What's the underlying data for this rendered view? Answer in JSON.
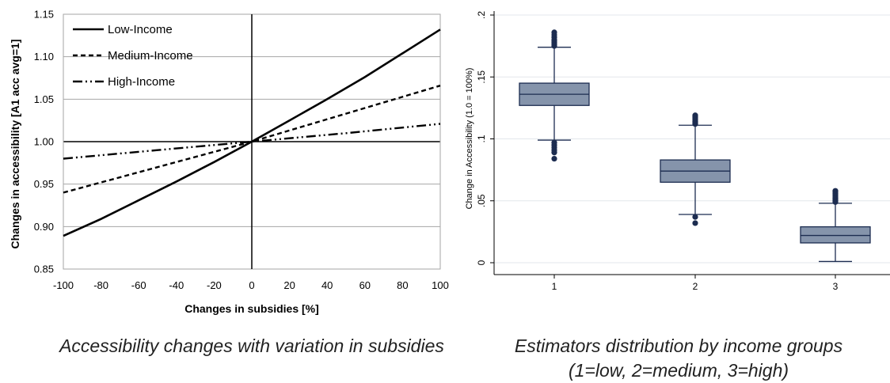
{
  "chart_data": [
    {
      "type": "line",
      "xlabel": "Changes in subsidies [%]",
      "ylabel": "Changes in accessibility [A1 acc avg=1]",
      "xlim": [
        -100,
        100
      ],
      "ylim": [
        0.85,
        1.15
      ],
      "xticks": [
        "-100",
        "-80",
        "-60",
        "-40",
        "-20",
        "0",
        "20",
        "40",
        "60",
        "80",
        "100"
      ],
      "yticks": [
        "0.85",
        "0.90",
        "0.95",
        "1.00",
        "1.05",
        "1.10",
        "1.15"
      ],
      "grid": "horizontal",
      "legend_position": "top-left",
      "series": [
        {
          "name": "Low-Income",
          "style": "solid",
          "points": [
            [
              -100,
              0.889
            ],
            [
              -80,
              0.909
            ],
            [
              -60,
              0.931
            ],
            [
              -40,
              0.953
            ],
            [
              -20,
              0.976
            ],
            [
              0,
              1.0
            ],
            [
              20,
              1.025
            ],
            [
              40,
              1.05
            ],
            [
              60,
              1.076
            ],
            [
              80,
              1.104
            ],
            [
              100,
              1.132
            ]
          ]
        },
        {
          "name": "Medium-Income",
          "style": "dashed",
          "points": [
            [
              -100,
              0.94
            ],
            [
              -50,
              0.97
            ],
            [
              0,
              1.0
            ],
            [
              50,
              1.033
            ],
            [
              100,
              1.066
            ]
          ]
        },
        {
          "name": "High-Income",
          "style": "dash-dot-dot",
          "points": [
            [
              -100,
              0.98
            ],
            [
              -50,
              0.99
            ],
            [
              0,
              1.0
            ],
            [
              50,
              1.01
            ],
            [
              100,
              1.021
            ]
          ]
        }
      ],
      "caption": "Accessibility changes with variation in subsidies"
    },
    {
      "type": "box",
      "xlabel": "",
      "ylabel": "Change in Accessibility (1.0 = 100%)",
      "ylim": [
        0,
        0.2
      ],
      "yticks": [
        ".2",
        ".15",
        ".1",
        ".05",
        "0"
      ],
      "grid": "horizontal",
      "box_color": "#8594ab",
      "categories": [
        "1",
        "2",
        "3"
      ],
      "boxes": [
        {
          "category": "1",
          "whisker_low": 0.099,
          "q1": 0.127,
          "median": 0.136,
          "q3": 0.145,
          "whisker_high": 0.174,
          "outliers": [
            0.084,
            0.089,
            0.091,
            0.093,
            0.095,
            0.097,
            0.175,
            0.176,
            0.177,
            0.178,
            0.179,
            0.18,
            0.182,
            0.184,
            0.186
          ]
        },
        {
          "category": "2",
          "whisker_low": 0.039,
          "q1": 0.065,
          "median": 0.074,
          "q3": 0.083,
          "whisker_high": 0.111,
          "outliers": [
            0.032,
            0.037,
            0.112,
            0.113,
            0.114,
            0.115,
            0.116,
            0.117,
            0.118,
            0.119
          ]
        },
        {
          "category": "3",
          "whisker_low": 0.001,
          "q1": 0.016,
          "median": 0.022,
          "q3": 0.029,
          "whisker_high": 0.048,
          "outliers": [
            0.049,
            0.05,
            0.051,
            0.052,
            0.053,
            0.054,
            0.055,
            0.056,
            0.057,
            0.058
          ]
        }
      ],
      "caption_line1": "Estimators distribution by income groups",
      "caption_line2": "(1=low, 2=medium, 3=high)"
    }
  ]
}
